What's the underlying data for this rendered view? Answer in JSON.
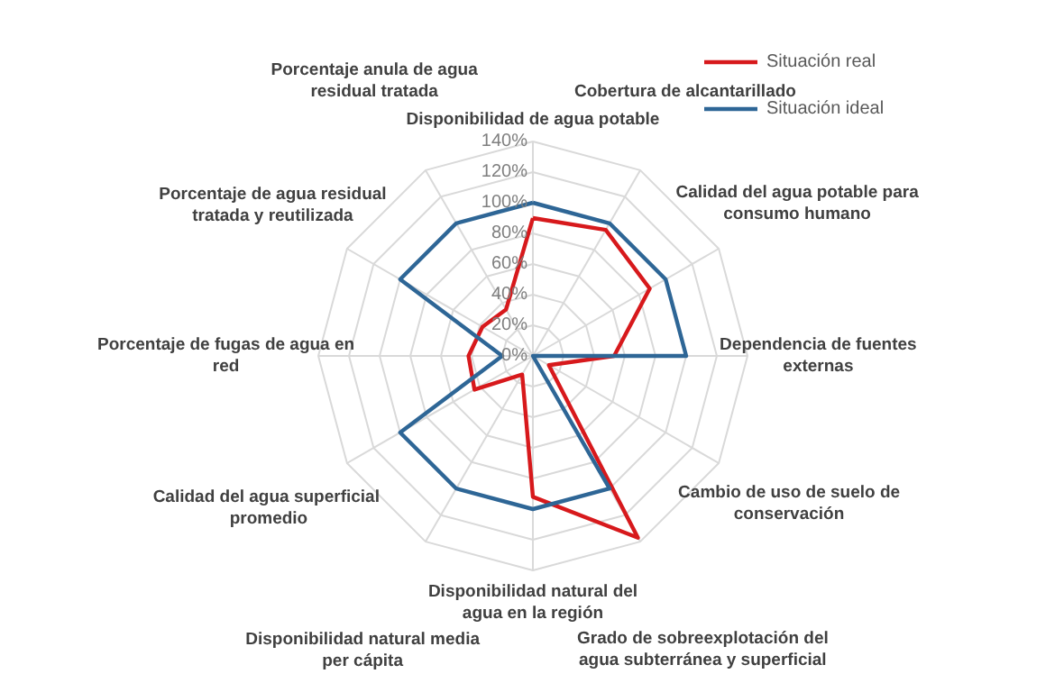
{
  "chart_data": {
    "type": "radar",
    "categories": [
      "Disponibilidad de agua potable",
      "Cobertura de alcantarillado",
      "Calidad del agua potable para consumo humano",
      "Dependencia de fuentes externas",
      "Cambio de uso de suelo de conservación",
      "Grado de sobreexplotación del agua subterránea y superficial",
      "Disponibilidad natural del agua en la región",
      "Disponibilidad natural media per cápita",
      "Calidad del agua  superficial promedio",
      "Porcentaje de fugas de agua en red",
      "Porcentaje de agua residual tratada y reutilizada",
      "Porcentaje anula de agua residual tratada"
    ],
    "series": [
      {
        "name": "Situación real",
        "color": "#d7191c",
        "values": [
          90,
          95,
          88,
          53,
          12,
          137,
          92,
          14,
          44,
          42,
          38,
          35
        ]
      },
      {
        "name": "Situación ideal",
        "color": "#2e6696",
        "values": [
          100,
          100,
          100,
          100,
          0,
          100,
          100,
          100,
          100,
          20,
          100,
          100
        ]
      }
    ],
    "ylim": [
      0,
      140
    ],
    "yticks": [
      {
        "value": 0,
        "label": "0%"
      },
      {
        "value": 20,
        "label": "20%"
      },
      {
        "value": 40,
        "label": "40%"
      },
      {
        "value": 60,
        "label": "60%"
      },
      {
        "value": 80,
        "label": "80%"
      },
      {
        "value": 100,
        "label": "100%"
      },
      {
        "value": 120,
        "label": "120%"
      },
      {
        "value": 140,
        "label": "140%"
      }
    ],
    "grid": true,
    "legend": "top right"
  }
}
